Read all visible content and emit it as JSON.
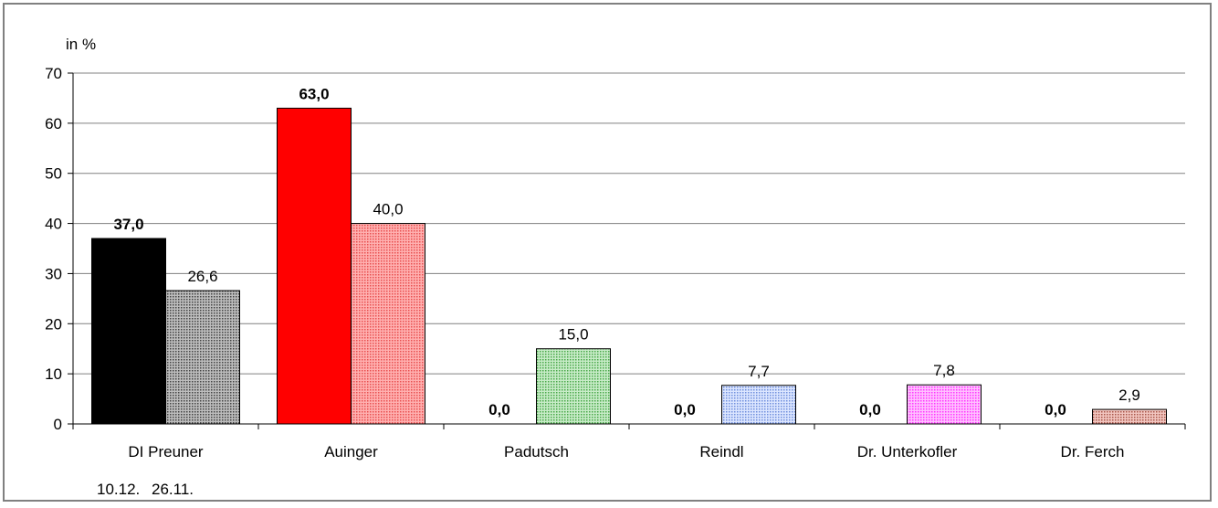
{
  "chart_data": {
    "type": "bar",
    "ylabel": "in %",
    "ylim": [
      0,
      70
    ],
    "yticks": [
      0,
      10,
      20,
      30,
      40,
      50,
      60,
      70
    ],
    "grid": true,
    "categories": [
      "DI Preuner",
      "Auinger",
      "Padutsch",
      "Reindl",
      "Dr. Unterkofler",
      "Dr. Ferch"
    ],
    "series": [
      {
        "name": "10.12.",
        "values": [
          37.0,
          63.0,
          0.0,
          0.0,
          0.0,
          0.0
        ],
        "labels": [
          "37,0",
          "63,0",
          "0,0",
          "0,0",
          "0,0",
          "0,0"
        ],
        "bold_labels": true
      },
      {
        "name": "26.11.",
        "values": [
          26.6,
          40.0,
          15.0,
          7.7,
          7.8,
          2.9
        ],
        "labels": [
          "26,6",
          "40,0",
          "15,0",
          "7,7",
          "7,8",
          "2,9"
        ],
        "bold_labels": false
      }
    ],
    "colors": {
      "series1": [
        "#000000",
        "#ff0000",
        "#000000",
        "#000000",
        "#000000",
        "#000000"
      ],
      "series2": [
        "#909090",
        "#f08080",
        "#7ec87e",
        "#9db8f0",
        "#ff66ff",
        "#c87a6e"
      ]
    },
    "legend_placement": "bottom-left"
  }
}
